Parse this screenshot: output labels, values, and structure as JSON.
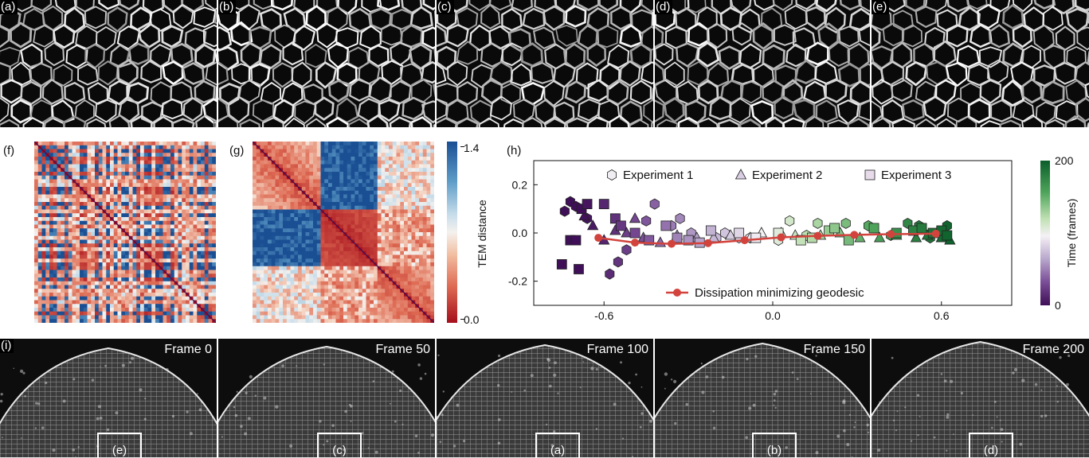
{
  "top_panels": [
    {
      "label": "(a)"
    },
    {
      "label": "(b)"
    },
    {
      "label": "(c)"
    },
    {
      "label": "(d)"
    },
    {
      "label": "(e)"
    }
  ],
  "panel_f": {
    "label": "(f)"
  },
  "panel_g": {
    "label": "(g)",
    "colorbar_label": "TEM distance",
    "colorbar_max": "1.4",
    "colorbar_min": "0.0",
    "colors": {
      "high": "#1a4f93",
      "mid": "#f4f1ee",
      "low": "#a50f1c"
    }
  },
  "panel_h": {
    "label": "(h)",
    "colorbar_label": "Time (frames)",
    "colorbar_max": "200",
    "colorbar_min": "0",
    "colors": {
      "high": "#0b5e2a",
      "mid": "#f5f1f5",
      "low": "#3f0f57",
      "geodesic": "#d2433d"
    },
    "legend": {
      "exp1": "Experiment 1",
      "exp2": "Experiment 2",
      "exp3": "Experiment 3",
      "geodesic": "Dissipation minimizing geodesic"
    }
  },
  "panel_i": {
    "label": "(i)"
  },
  "bottom_panels": [
    {
      "frame": "Frame 0",
      "inset": "(e)"
    },
    {
      "frame": "Frame 50",
      "inset": "(c)"
    },
    {
      "frame": "Frame 100",
      "inset": "(a)"
    },
    {
      "frame": "Frame 150",
      "inset": "(b)"
    },
    {
      "frame": "Frame 200",
      "inset": "(d)"
    }
  ],
  "chart_data": {
    "type": "scatter",
    "title": "",
    "xlabel": "",
    "ylabel": "",
    "xlim": [
      -0.85,
      0.85
    ],
    "ylim": [
      -0.3,
      0.3
    ],
    "xticks": [
      "-0.6",
      "0.0",
      "0.6"
    ],
    "yticks": [
      "0.2",
      "0.0",
      "-0.2"
    ],
    "legend_placement": "top",
    "colorbar": {
      "label": "Time (frames)",
      "min": 0,
      "max": 200
    },
    "series": [
      {
        "name": "Experiment 1",
        "marker": "hexagon",
        "points": [
          [
            -0.72,
            0.13
          ],
          [
            -0.7,
            0.11
          ],
          [
            -0.74,
            0.09
          ],
          [
            -0.66,
            0.06
          ],
          [
            -0.58,
            -0.17
          ],
          [
            -0.55,
            -0.12
          ],
          [
            -0.52,
            -0.07
          ],
          [
            -0.45,
            0.05
          ],
          [
            -0.42,
            0.12
          ],
          [
            -0.36,
            0.03
          ],
          [
            -0.33,
            0.06
          ],
          [
            -0.29,
            0.0
          ],
          [
            -0.2,
            -0.02
          ],
          [
            -0.17,
            0.0
          ],
          [
            -0.12,
            -0.02
          ],
          [
            -0.08,
            -0.02
          ],
          [
            0.02,
            -0.03
          ],
          [
            0.06,
            0.05
          ],
          [
            0.12,
            -0.01
          ],
          [
            0.16,
            0.04
          ],
          [
            0.26,
            0.04
          ],
          [
            0.34,
            0.03
          ],
          [
            0.42,
            -0.01
          ],
          [
            0.48,
            0.04
          ],
          [
            0.52,
            0.03
          ],
          [
            0.56,
            -0.02
          ],
          [
            0.62,
            0.03
          ]
        ]
      },
      {
        "name": "Experiment 2",
        "marker": "triangle",
        "points": [
          [
            -0.67,
            0.07
          ],
          [
            -0.64,
            0.03
          ],
          [
            -0.6,
            -0.03
          ],
          [
            -0.56,
            0.01
          ],
          [
            -0.52,
            0.0
          ],
          [
            -0.49,
            0.06
          ],
          [
            -0.46,
            -0.02
          ],
          [
            -0.4,
            -0.04
          ],
          [
            -0.34,
            -0.01
          ],
          [
            -0.27,
            -0.02
          ],
          [
            -0.21,
            -0.02
          ],
          [
            -0.15,
            -0.01
          ],
          [
            -0.08,
            -0.02
          ],
          [
            -0.04,
            0.0
          ],
          [
            0.03,
            0.0
          ],
          [
            0.08,
            -0.01
          ],
          [
            0.17,
            -0.01
          ],
          [
            0.24,
            0.0
          ],
          [
            0.31,
            -0.02
          ],
          [
            0.38,
            -0.02
          ],
          [
            0.44,
            -0.01
          ],
          [
            0.51,
            -0.02
          ],
          [
            0.55,
            -0.01
          ],
          [
            0.6,
            -0.02
          ],
          [
            0.63,
            -0.03
          ]
        ]
      },
      {
        "name": "Experiment 3",
        "marker": "square",
        "points": [
          [
            -0.75,
            -0.13
          ],
          [
            -0.72,
            -0.03
          ],
          [
            -0.7,
            -0.03
          ],
          [
            -0.69,
            -0.15
          ],
          [
            -0.68,
            0.1
          ],
          [
            -0.66,
            0.12
          ],
          [
            -0.6,
            0.12
          ],
          [
            -0.56,
            0.06
          ],
          [
            -0.54,
            0.03
          ],
          [
            -0.49,
            0.0
          ],
          [
            -0.44,
            -0.03
          ],
          [
            -0.38,
            0.03
          ],
          [
            -0.34,
            -0.02
          ],
          [
            -0.3,
            -0.03
          ],
          [
            -0.26,
            -0.04
          ],
          [
            -0.22,
            0.01
          ],
          [
            -0.12,
            0.0
          ],
          [
            -0.06,
            -0.02
          ],
          [
            0.02,
            0.0
          ],
          [
            0.1,
            -0.03
          ],
          [
            0.14,
            -0.02
          ],
          [
            0.2,
            0.01
          ],
          [
            0.22,
            0.02
          ],
          [
            0.27,
            -0.03
          ],
          [
            0.36,
            0.02
          ],
          [
            0.44,
            0.0
          ],
          [
            0.5,
            0.01
          ],
          [
            0.53,
            0.02
          ],
          [
            0.57,
            0.0
          ],
          [
            0.6,
            0.01
          ],
          [
            0.62,
            -0.01
          ]
        ]
      },
      {
        "name": "Dissipation minimizing geodesic",
        "marker": "circle-line",
        "points": [
          [
            -0.62,
            -0.02
          ],
          [
            -0.49,
            -0.04
          ],
          [
            -0.36,
            -0.045
          ],
          [
            -0.23,
            -0.042
          ],
          [
            -0.1,
            -0.03
          ],
          [
            0.03,
            -0.018
          ],
          [
            0.16,
            -0.012
          ],
          [
            0.29,
            -0.008
          ],
          [
            0.42,
            -0.005
          ],
          [
            0.58,
            -0.003
          ]
        ]
      }
    ]
  }
}
